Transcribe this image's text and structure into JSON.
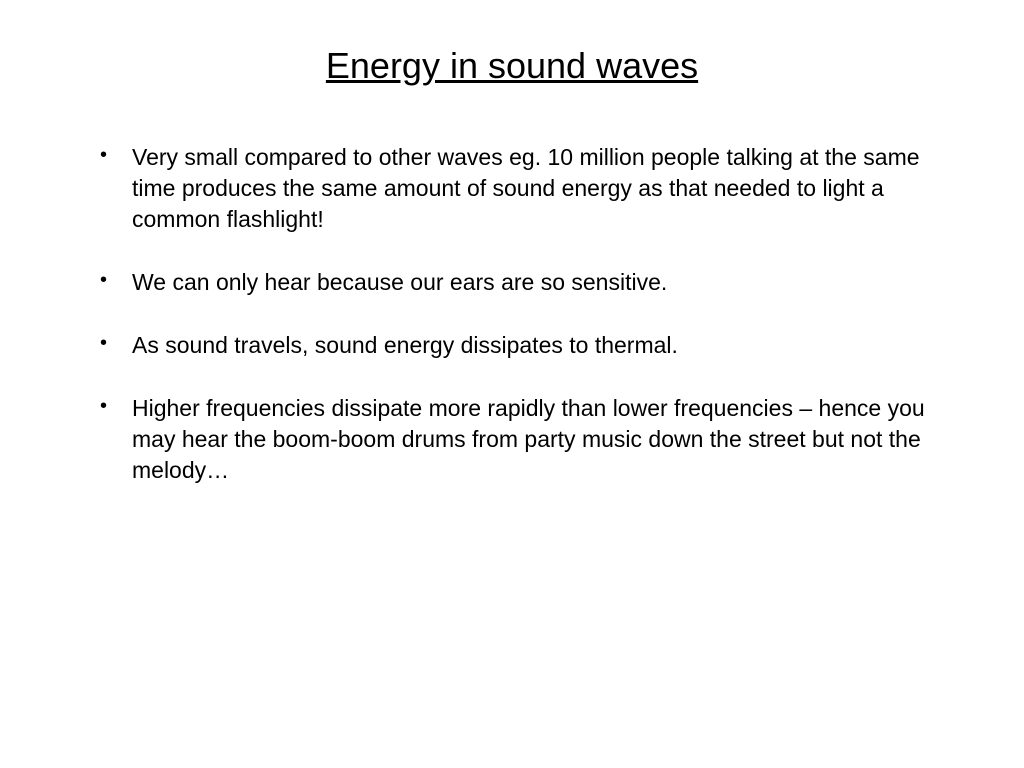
{
  "slide": {
    "title": "Energy in sound waves",
    "title_fontsize": 36,
    "title_underline": true,
    "bullets": [
      "Very small compared to other waves eg. 10 million people talking at the same time produces the same amount of sound energy as that needed to light a common flashlight!",
      "We can only hear because our ears are so sensitive.",
      "As sound travels, sound energy dissipates to thermal.",
      "Higher frequencies dissipate more rapidly than lower frequencies – hence you may hear the boom-boom drums from party music down the street but not the melody…"
    ],
    "bullet_fontsize": 23,
    "background_color": "#ffffff",
    "text_color": "#000000",
    "font_family": "Arial"
  }
}
